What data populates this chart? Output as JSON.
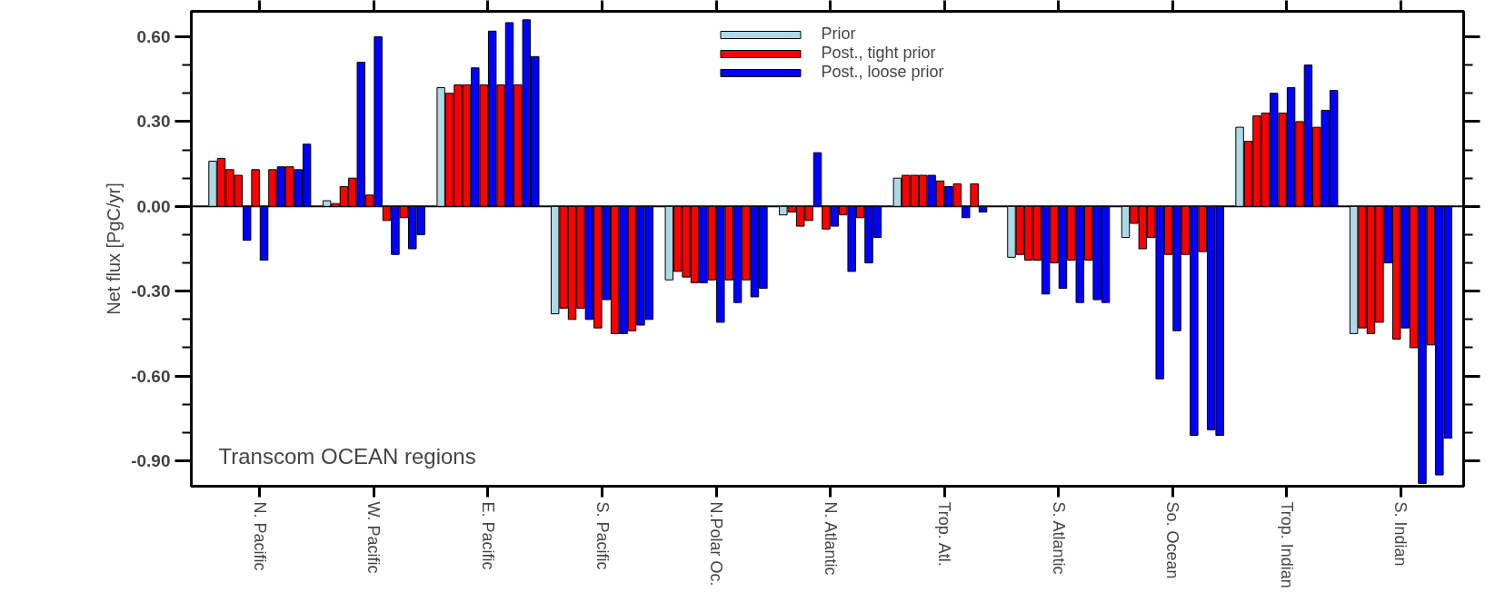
{
  "chart_data": {
    "type": "bar",
    "ylabel": "Net flux [PgC/yr]",
    "annotations": [
      "Transcom OCEAN regions"
    ],
    "categories": [
      "N. Pacific",
      "W. Pacific",
      "E. Pacific",
      "S. Pacific",
      "N.Polar Oc.",
      "N. Atlantic",
      "Trop. Atl.",
      "S. Atlantic",
      "So. Ocean",
      "Trop. Indian",
      "S. Indian"
    ],
    "series": [
      {
        "name": "Prior",
        "color": "#add8e6",
        "values": [
          0.16,
          0.02,
          0.42,
          -0.38,
          -0.26,
          -0.03,
          0.1,
          -0.18,
          -0.11,
          0.28,
          -0.45
        ]
      },
      {
        "name": "Post., tight prior",
        "color": "#ff0000",
        "values": [
          0.17,
          0.01,
          0.4,
          -0.36,
          -0.23,
          -0.02,
          0.11,
          -0.17,
          -0.06,
          0.23,
          -0.43
        ]
      },
      {
        "color": "#ff0000",
        "values": [
          0.13,
          0.07,
          0.43,
          -0.4,
          -0.25,
          -0.07,
          0.11,
          -0.19,
          -0.15,
          0.32,
          -0.45
        ]
      },
      {
        "color": "#ff0000",
        "values": [
          0.11,
          0.1,
          0.43,
          -0.36,
          -0.27,
          -0.05,
          0.11,
          -0.19,
          -0.11,
          0.33,
          -0.41
        ]
      },
      {
        "name": "Post., loose prior",
        "color": "#0000ff",
        "values": [
          -0.12,
          0.51,
          0.49,
          -0.4,
          -0.27,
          0.19,
          0.11,
          -0.31,
          -0.61,
          0.4,
          -0.2
        ]
      },
      {
        "color": "#ff0000",
        "values": [
          0.13,
          0.04,
          0.43,
          -0.43,
          -0.26,
          -0.08,
          0.09,
          -0.2,
          -0.17,
          0.33,
          -0.47
        ]
      },
      {
        "color": "#0000ff",
        "values": [
          -0.19,
          0.6,
          0.62,
          -0.33,
          -0.41,
          -0.07,
          0.07,
          -0.29,
          -0.44,
          0.42,
          -0.43
        ]
      },
      {
        "color": "#ff0000",
        "values": [
          0.13,
          -0.05,
          0.43,
          -0.45,
          -0.26,
          -0.03,
          0.08,
          -0.19,
          -0.17,
          0.3,
          -0.5
        ]
      },
      {
        "color": "#0000ff",
        "values": [
          0.14,
          -0.17,
          0.65,
          -0.45,
          -0.34,
          -0.23,
          -0.04,
          -0.34,
          -0.81,
          0.5,
          -0.98
        ]
      },
      {
        "color": "#ff0000",
        "values": [
          0.14,
          -0.04,
          0.43,
          -0.44,
          -0.26,
          -0.04,
          0.08,
          -0.19,
          -0.16,
          0.28,
          -0.49
        ]
      },
      {
        "color": "#0000ff",
        "values": [
          0.13,
          -0.15,
          0.66,
          -0.42,
          -0.32,
          -0.2,
          -0.02,
          -0.33,
          -0.79,
          0.34,
          -0.95
        ]
      },
      {
        "color": "#0000ff",
        "values": [
          0.22,
          -0.1,
          0.53,
          -0.4,
          -0.29,
          -0.11,
          null,
          -0.34,
          -0.81,
          0.41,
          -0.82
        ]
      }
    ],
    "ylim": [
      -0.99,
      0.69
    ],
    "yticks": [
      {
        "value": -0.9,
        "label": "-0.90"
      },
      {
        "value": -0.8,
        "label": null
      },
      {
        "value": -0.7,
        "label": null
      },
      {
        "value": -0.6,
        "label": "-0.60"
      },
      {
        "value": -0.5,
        "label": null
      },
      {
        "value": -0.4,
        "label": null
      },
      {
        "value": -0.3,
        "label": "-0.30"
      },
      {
        "value": -0.2,
        "label": null
      },
      {
        "value": -0.1,
        "label": null
      },
      {
        "value": 0,
        "label": "0.00"
      },
      {
        "value": 0.1,
        "label": null
      },
      {
        "value": 0.2,
        "label": null
      },
      {
        "value": 0.3,
        "label": "0.30"
      },
      {
        "value": 0.4,
        "label": null
      },
      {
        "value": 0.5,
        "label": null
      },
      {
        "value": 0.6,
        "label": "0.60"
      }
    ],
    "ref_lines": [
      {
        "axis": "y",
        "value": 0,
        "color": "#000000"
      }
    ],
    "legend": "top"
  }
}
